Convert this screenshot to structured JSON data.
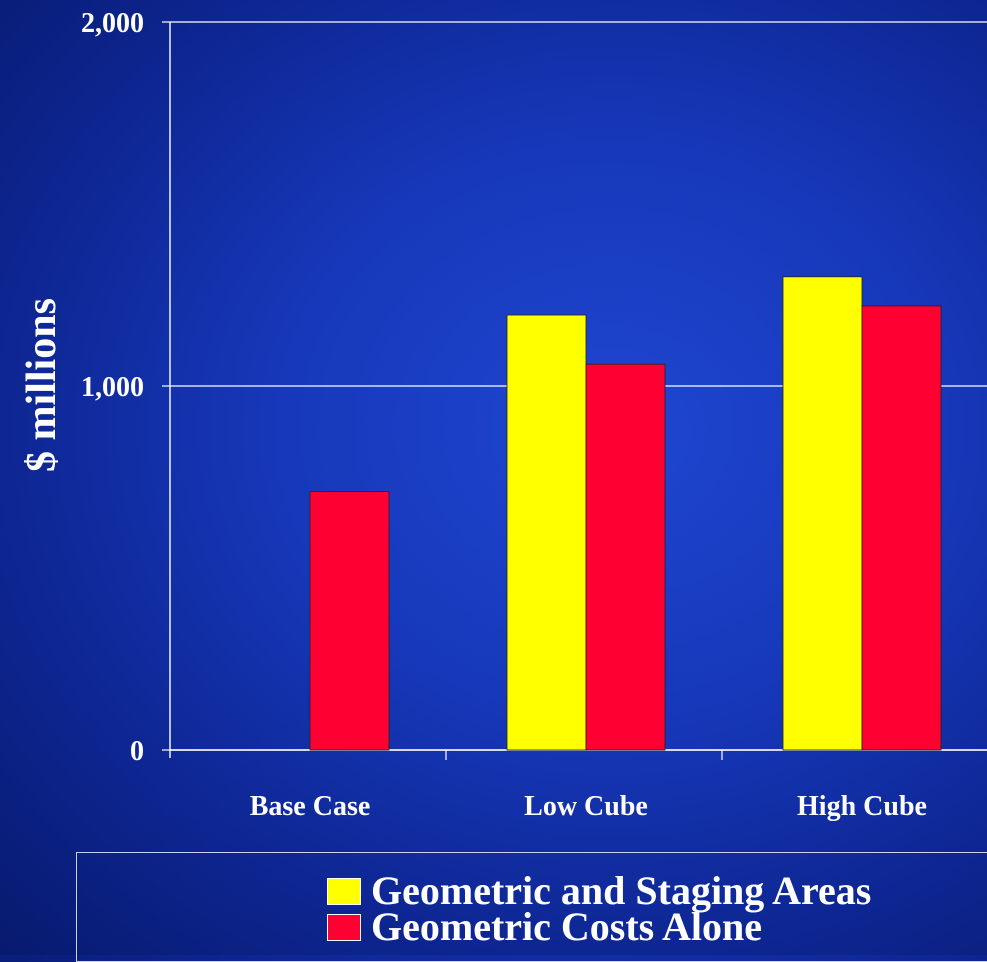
{
  "chart_data": {
    "type": "bar",
    "categories": [
      "Base Case",
      "Low Cube",
      "High Cube"
    ],
    "series": [
      {
        "name": "Geometric and Staging Areas",
        "color": "#ffff00",
        "values": [
          null,
          1195,
          1300
        ]
      },
      {
        "name": "Geometric Costs Alone",
        "color": "#ff0033",
        "values": [
          710,
          1060,
          1220
        ]
      }
    ],
    "yticks": [
      "0",
      "1,000",
      "2,000"
    ],
    "ylabel": "$ millions",
    "ylim": [
      0,
      2000
    ],
    "grid": true,
    "legend_position": "bottom"
  }
}
